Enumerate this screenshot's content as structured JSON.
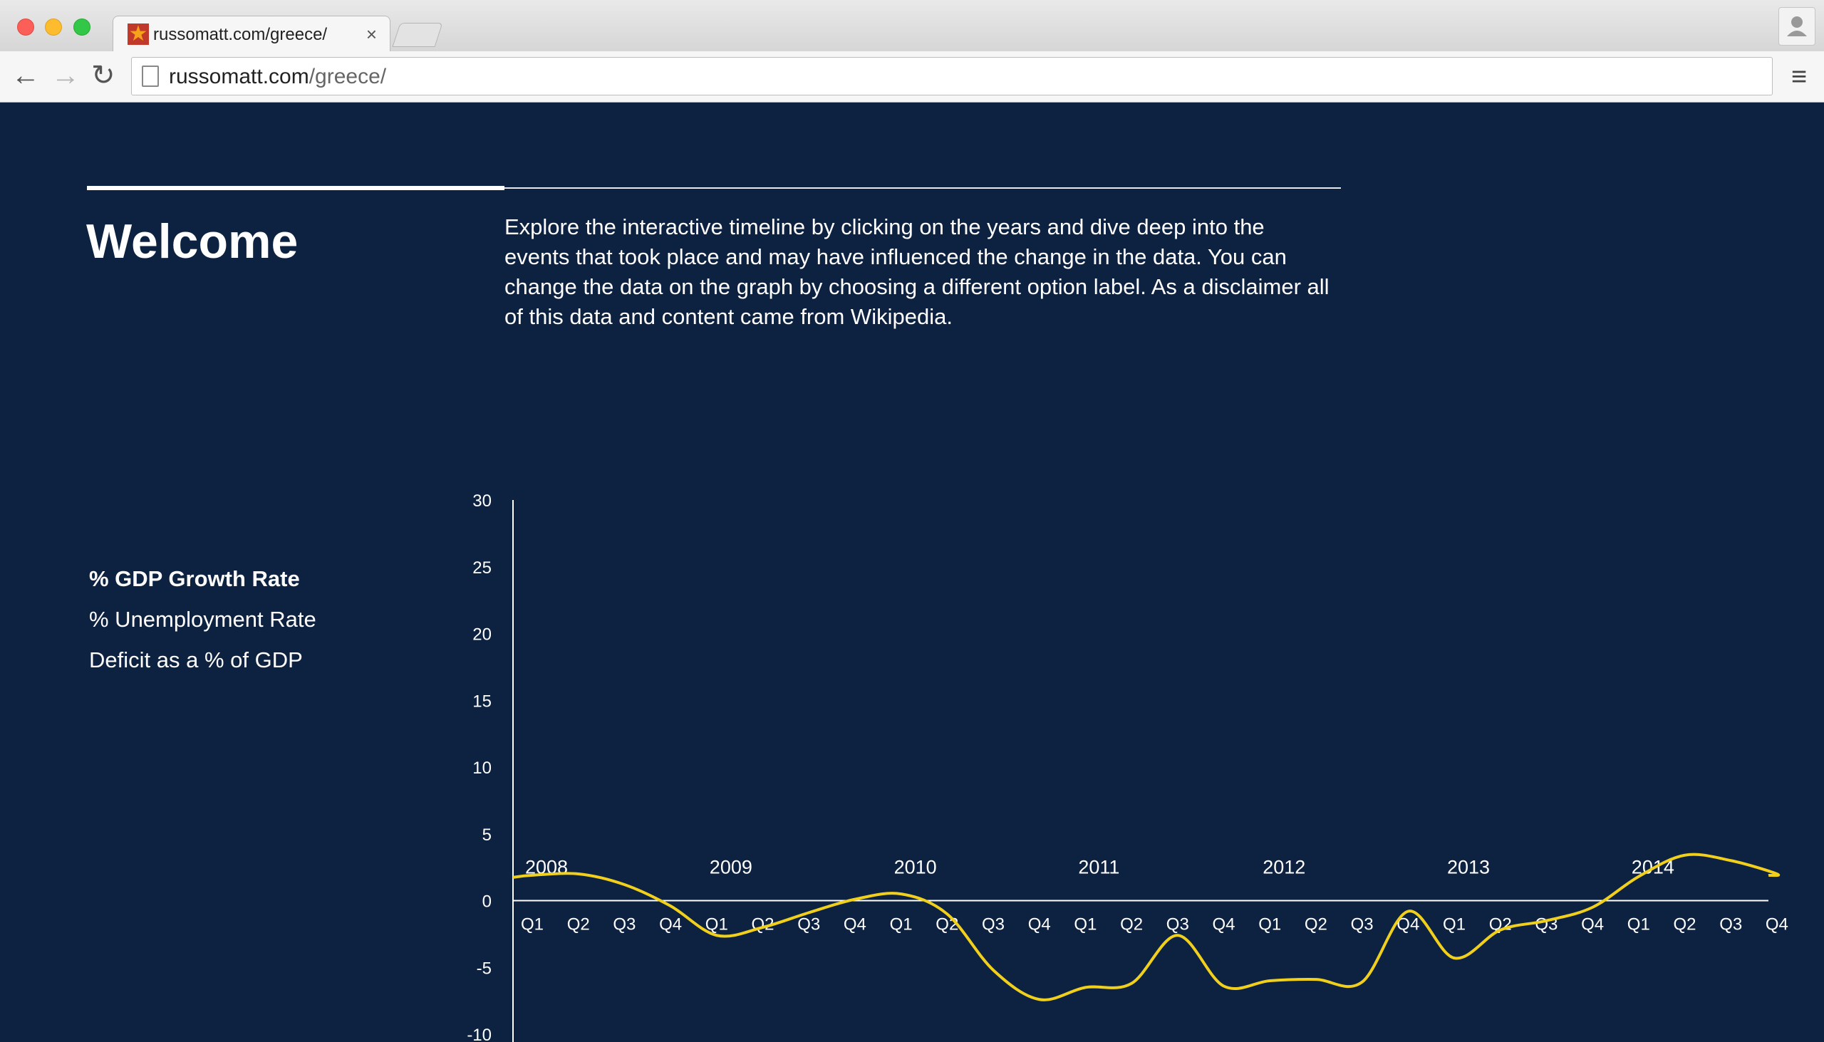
{
  "browser": {
    "tab_title": "russomatt.com/greece/",
    "tab_close": "×",
    "url_host": "russomatt.com",
    "url_path": "/greece/"
  },
  "page": {
    "heading": "Welcome",
    "intro": "Explore the interactive timeline by clicking on the years and dive deep into the events that took place and may have influenced the change in the data. You can change the data on the graph by choosing a different option label. As a disclaimer all of this data and content came from Wikipedia.",
    "options": [
      {
        "label": "% GDP Growth Rate",
        "active": true
      },
      {
        "label": "% Unemployment Rate",
        "active": false
      },
      {
        "label": "Deficit as a % of GDP",
        "active": false
      }
    ]
  },
  "colors": {
    "background": "#0d2140",
    "line": "#f1d01d",
    "axis": "#ffffff"
  },
  "chart_data": {
    "type": "line",
    "title": "",
    "xlabel": "",
    "ylabel": "",
    "ylim": [
      -10,
      30
    ],
    "yticks": [
      30,
      25,
      20,
      15,
      10,
      5,
      0,
      -5,
      -10
    ],
    "years": [
      "2008",
      "2009",
      "2010",
      "2011",
      "2012",
      "2013",
      "2014"
    ],
    "categories": [
      "Q1",
      "Q2",
      "Q3",
      "Q4",
      "Q1",
      "Q2",
      "Q3",
      "Q4",
      "Q1",
      "Q2",
      "Q3",
      "Q4",
      "Q1",
      "Q2",
      "Q3",
      "Q4",
      "Q1",
      "Q2",
      "Q3",
      "Q4",
      "Q1",
      "Q2",
      "Q3",
      "Q4",
      "Q1",
      "Q2",
      "Q3",
      "Q4"
    ],
    "series": [
      {
        "values": [
          1.9,
          2.0,
          1.2,
          -0.4,
          -2.6,
          -2.0,
          -0.9,
          0.1,
          0.5,
          -1.0,
          -5.2,
          -7.4,
          -6.5,
          -6.2,
          -2.6,
          -6.4,
          -6.0,
          -5.9,
          -6.1,
          -0.8,
          -4.3,
          -2.2,
          -1.5,
          -0.5,
          1.8,
          3.4,
          3.0,
          2.0
        ]
      }
    ]
  }
}
